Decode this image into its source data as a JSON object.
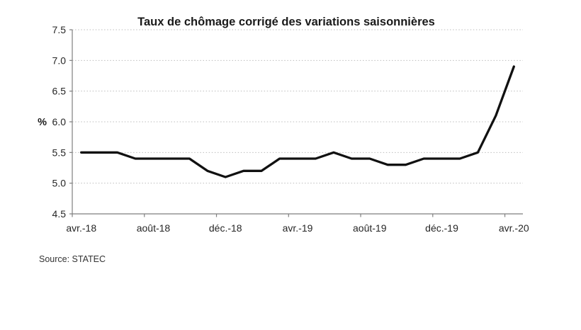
{
  "source_note": "Source: STATEC",
  "chart_data": {
    "type": "line",
    "title": "Taux de chômage corrigé des variations saisonnières",
    "ylabel": "%",
    "xlabel": "",
    "categories": [
      "avr.-18",
      "mai-18",
      "juin-18",
      "juil.-18",
      "août-18",
      "sept.-18",
      "oct.-18",
      "nov.-18",
      "déc.-18",
      "janv.-19",
      "févr.-19",
      "mars-19",
      "avr.-19",
      "mai-19",
      "juin-19",
      "juil.-19",
      "août-19",
      "sept.-19",
      "oct.-19",
      "nov.-19",
      "déc.-19",
      "janv.-20",
      "févr.-20",
      "mars-20",
      "avr.-20"
    ],
    "values": [
      5.5,
      5.5,
      5.5,
      5.4,
      5.4,
      5.4,
      5.4,
      5.2,
      5.1,
      5.2,
      5.2,
      5.4,
      5.4,
      5.4,
      5.5,
      5.4,
      5.4,
      5.3,
      5.3,
      5.4,
      5.4,
      5.4,
      5.5,
      6.1,
      6.9
    ],
    "x_tick_labels": [
      "avr.-18",
      "août-18",
      "déc.-18",
      "avr.-19",
      "août-19",
      "déc.-19",
      "avr.-20"
    ],
    "x_tick_every": 4,
    "y_ticks": [
      4.5,
      5.0,
      5.5,
      6.0,
      6.5,
      7.0,
      7.5
    ],
    "ylim": [
      4.5,
      7.5
    ],
    "grid": "horizontal-dotted",
    "legend": "none",
    "colors": {
      "line": "#111111",
      "axis": "#7f7f7f",
      "grid": "#bdbdbd",
      "tick_text": "#262626",
      "title_text": "#1a1a1a",
      "source_text": "#333333"
    }
  }
}
